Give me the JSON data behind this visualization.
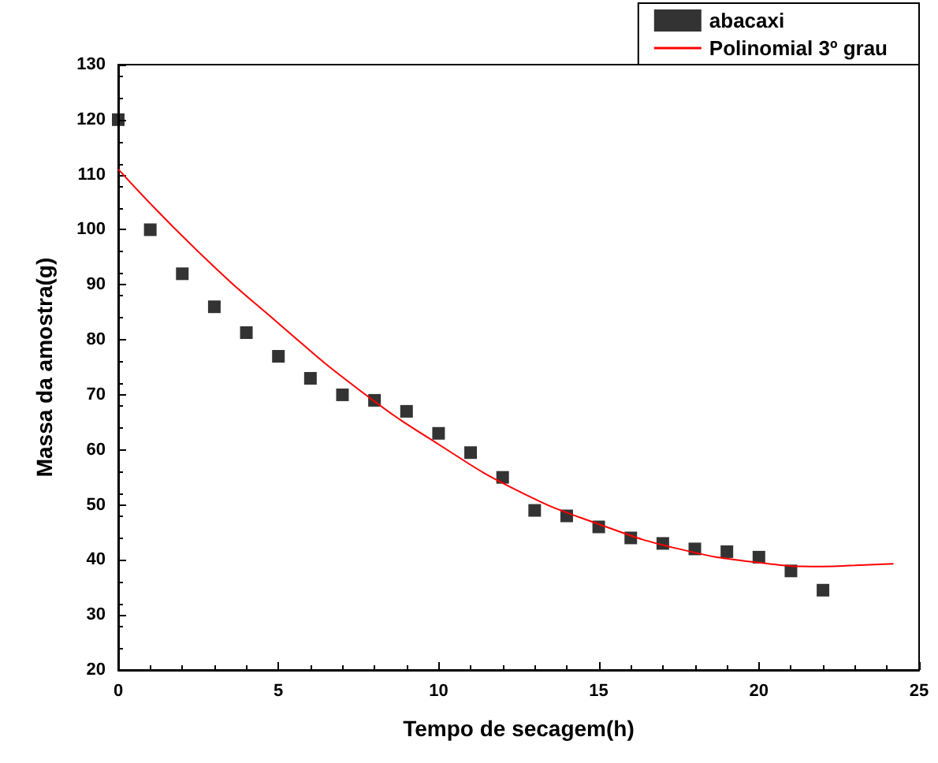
{
  "chart_data": {
    "type": "scatter",
    "xlabel": "Tempo de secagem(h)",
    "ylabel": "Massa da amostra(g)",
    "xlim": [
      0,
      25
    ],
    "xticks": [
      0,
      5,
      10,
      15,
      20,
      25
    ],
    "ylim": [
      20,
      130
    ],
    "yticks": [
      20,
      30,
      40,
      50,
      60,
      70,
      80,
      90,
      100,
      110,
      120,
      130
    ],
    "legend": "top right",
    "series": [
      {
        "name": "abacaxi",
        "marker": "square",
        "color": "#000000",
        "x": [
          0,
          1,
          2,
          3,
          4,
          5,
          6,
          7,
          8,
          9,
          10,
          11,
          12,
          13,
          14,
          15,
          16,
          17,
          18,
          19,
          20,
          21,
          22
        ],
        "values": [
          120,
          100,
          92,
          86,
          81.3,
          77,
          73,
          70,
          69,
          67,
          63,
          59.5,
          55,
          49,
          48,
          46,
          44,
          43,
          42,
          41.5,
          40.5,
          38,
          34.5
        ]
      },
      {
        "name": "Polinomial 3º grau",
        "type": "line",
        "color": "#ff0000",
        "marker": "none",
        "line_style": "solid",
        "x": [
          0,
          2.5,
          5,
          7.5,
          10,
          12.5,
          15,
          17.5,
          20,
          22,
          23,
          24.2
        ],
        "values": [
          111,
          96,
          83,
          71,
          61,
          52.5,
          46.5,
          42,
          39.5,
          38.8,
          39,
          39.3
        ]
      }
    ]
  }
}
